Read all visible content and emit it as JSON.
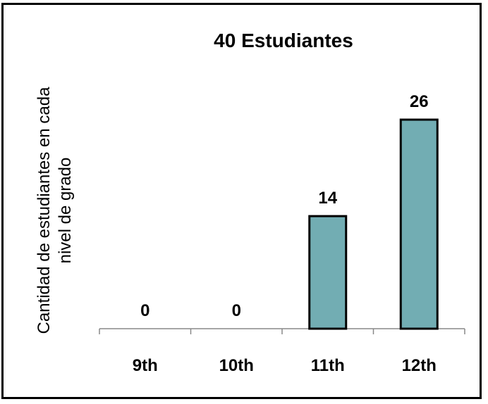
{
  "chart_data": {
    "type": "bar",
    "title": "40 Estudiantes",
    "ylabel_lines": [
      "Cantidad de estudiantes en cada",
      "nivel de grado"
    ],
    "xlabel": "",
    "categories": [
      "9th",
      "10th",
      "11th",
      "12th"
    ],
    "values": [
      0,
      0,
      14,
      26
    ],
    "data_labels": [
      "0",
      "0",
      "14",
      "26"
    ],
    "ylim": [
      0,
      26
    ],
    "grid": false,
    "legend": "none",
    "bar_color": "#72adb3",
    "bar_stroke": "#000000"
  }
}
